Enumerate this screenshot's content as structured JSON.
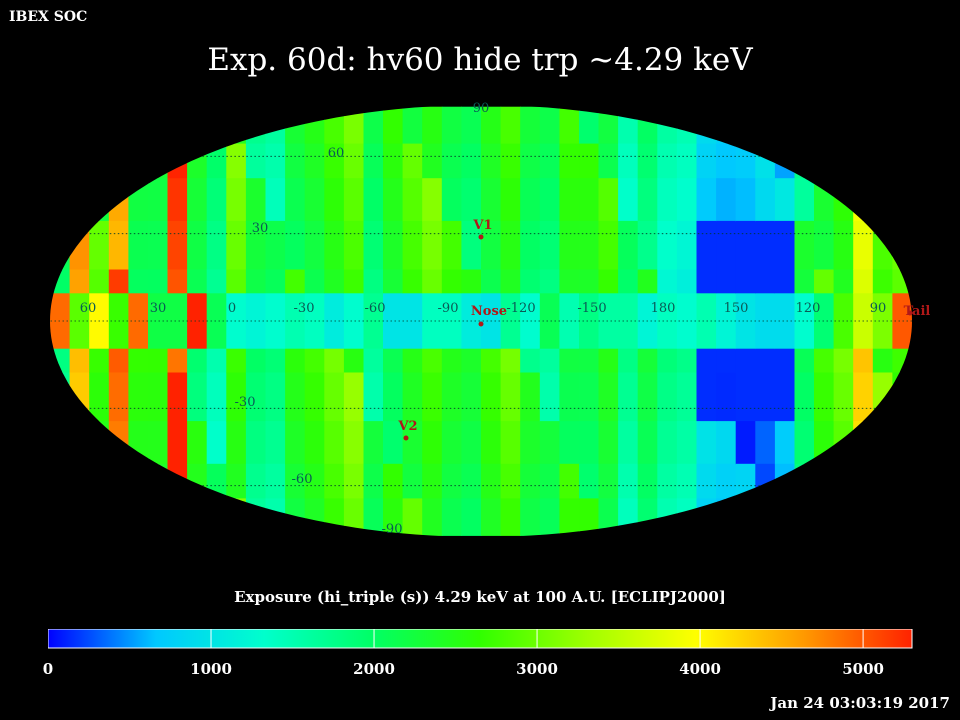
{
  "header": {
    "app_label": "IBEX SOC",
    "title": "Exp.   60d: hv60 hide trp ~4.29 keV",
    "timestamp": "Jan 24 03:03:19 2017"
  },
  "colorbar": {
    "title": "Exposure (hi_triple (s))  4.29 keV at 100 A.U. [ECLIPJ2000]",
    "min": 0,
    "max": 5300,
    "tick_labels": [
      "0",
      "1000",
      "2000",
      "3000",
      "4000",
      "5000"
    ],
    "tick_values": [
      0,
      1000,
      2000,
      3000,
      4000,
      5000
    ],
    "stops": [
      "#0000ff",
      "#00c8ff",
      "#00ffcc",
      "#00ff66",
      "#30ff00",
      "#a0ff00",
      "#ffff00",
      "#ff9900",
      "#ff2200"
    ]
  },
  "chart_data": {
    "type": "heatmap",
    "projection": "mollweide",
    "grid": true,
    "longitude_labels": [
      "60",
      "30",
      "0",
      "-30",
      "-60",
      "-90",
      "-120",
      "-150",
      "180",
      "150",
      "120",
      "90"
    ],
    "latitude_labels": [
      "90",
      "60",
      "30",
      "-30",
      "-60",
      "-90"
    ],
    "markers": [
      {
        "label": "V1",
        "lon": -106,
        "lat": 34
      },
      {
        "label": "V2",
        "lon": -70,
        "lat": -32
      },
      {
        "label": "Nose",
        "lon": -105,
        "lat": 3
      },
      {
        "label": "Tail",
        "lon": 75,
        "lat": -3
      }
    ],
    "strip_values": [
      1900,
      4400,
      2600,
      4800,
      2400,
      2300,
      5200,
      2200,
      1700,
      2800,
      2000,
      1800,
      2400,
      2500,
      2700,
      2900,
      1900,
      2300,
      2600,
      2800,
      2400,
      2200,
      2500,
      2700,
      2100,
      1900,
      2400,
      2300,
      2500,
      1700,
      2100,
      1600,
      1400,
      700,
      500,
      450,
      600,
      900,
      2000,
      2600,
      2800,
      4000,
      2900,
      3000
    ],
    "ecliptic_band_values": [
      4900,
      2900,
      4000,
      2700,
      4900,
      2200,
      2200,
      5400,
      2100,
      1300,
      1200,
      1300,
      1500,
      1400,
      1100,
      1300,
      1700,
      1000,
      1000,
      1400,
      1400,
      1100,
      1000,
      1700,
      1300,
      2100,
      1500,
      1800,
      1600,
      1600,
      1200,
      1400,
      1300,
      1500,
      1200,
      1000,
      900,
      900,
      1300,
      1900,
      2800,
      3600,
      3100,
      5000
    ],
    "low_exposure_region": {
      "lon_range": [
        120,
        160
      ],
      "lat_range": [
        -35,
        50
      ],
      "value": 150
    },
    "colorbar_range": [
      0,
      5300
    ]
  }
}
